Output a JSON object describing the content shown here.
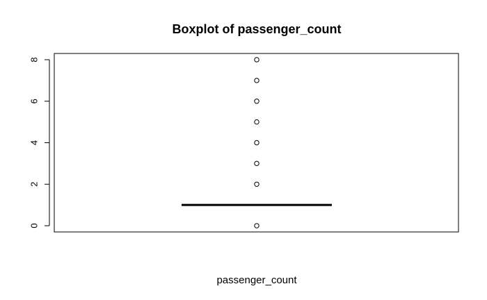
{
  "chart_data": {
    "type": "boxplot",
    "title": "Boxplot of passenger_count",
    "xlabel": "passenger_count",
    "ylabel": "",
    "ylim": [
      -0.3,
      8.3
    ],
    "yticks": [
      0,
      2,
      4,
      6,
      8
    ],
    "grid": false,
    "series": [
      {
        "min": 1,
        "q1": 1,
        "median": 1,
        "q3": 1,
        "max": 1,
        "outliers": [
          0,
          2,
          3,
          4,
          5,
          6,
          7,
          8
        ]
      }
    ],
    "colors": {
      "box": "#000000",
      "background": "#ffffff"
    }
  }
}
